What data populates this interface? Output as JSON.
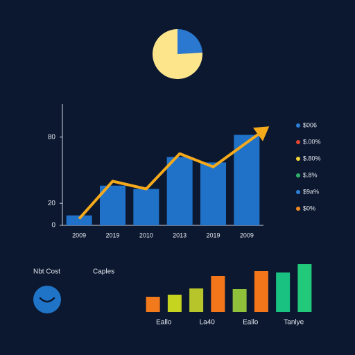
{
  "chart_data": [
    {
      "type": "pie",
      "values": [
        24,
        76
      ],
      "colors": [
        "#2a78d0",
        "#fde58c"
      ]
    },
    {
      "type": "bar",
      "categories": [
        "2009",
        "2019",
        "2010",
        "2013",
        "2019",
        "2009"
      ],
      "values": [
        9,
        36,
        33,
        62,
        57,
        82
      ],
      "color": "#1f72c8",
      "line_values": [
        6,
        40,
        33,
        65,
        53,
        75
      ],
      "line_color": "#f5aa1c",
      "ylim": [
        0,
        110
      ],
      "yticks": [
        0,
        20,
        80
      ],
      "legend": [
        {
          "label": "$006",
          "color": "#2a80d8"
        },
        {
          "label": "$.00%",
          "color": "#e0462e"
        },
        {
          "label": "$.80%",
          "color": "#f3d23a"
        },
        {
          "label": "$.8%",
          "color": "#2fb36a"
        },
        {
          "label": "$9a%",
          "color": "#2a80d8"
        },
        {
          "label": "$0%",
          "color": "#f08a1e"
        }
      ]
    },
    {
      "type": "bar",
      "categories": [
        null,
        "Eallo",
        null,
        "La40",
        null,
        "Eallo",
        null,
        "Tanlye"
      ],
      "values": [
        22,
        25,
        34,
        52,
        33,
        59,
        57,
        69
      ],
      "colors": [
        "#f37a1c",
        "#c4d41f",
        "#b7c52a",
        "#f3761a",
        "#8fc23a",
        "#f3761a",
        "#19c281",
        "#22c97a"
      ],
      "ylim": [
        0,
        80
      ]
    }
  ],
  "labels": [
    "Nbt Cost",
    "Caples"
  ]
}
